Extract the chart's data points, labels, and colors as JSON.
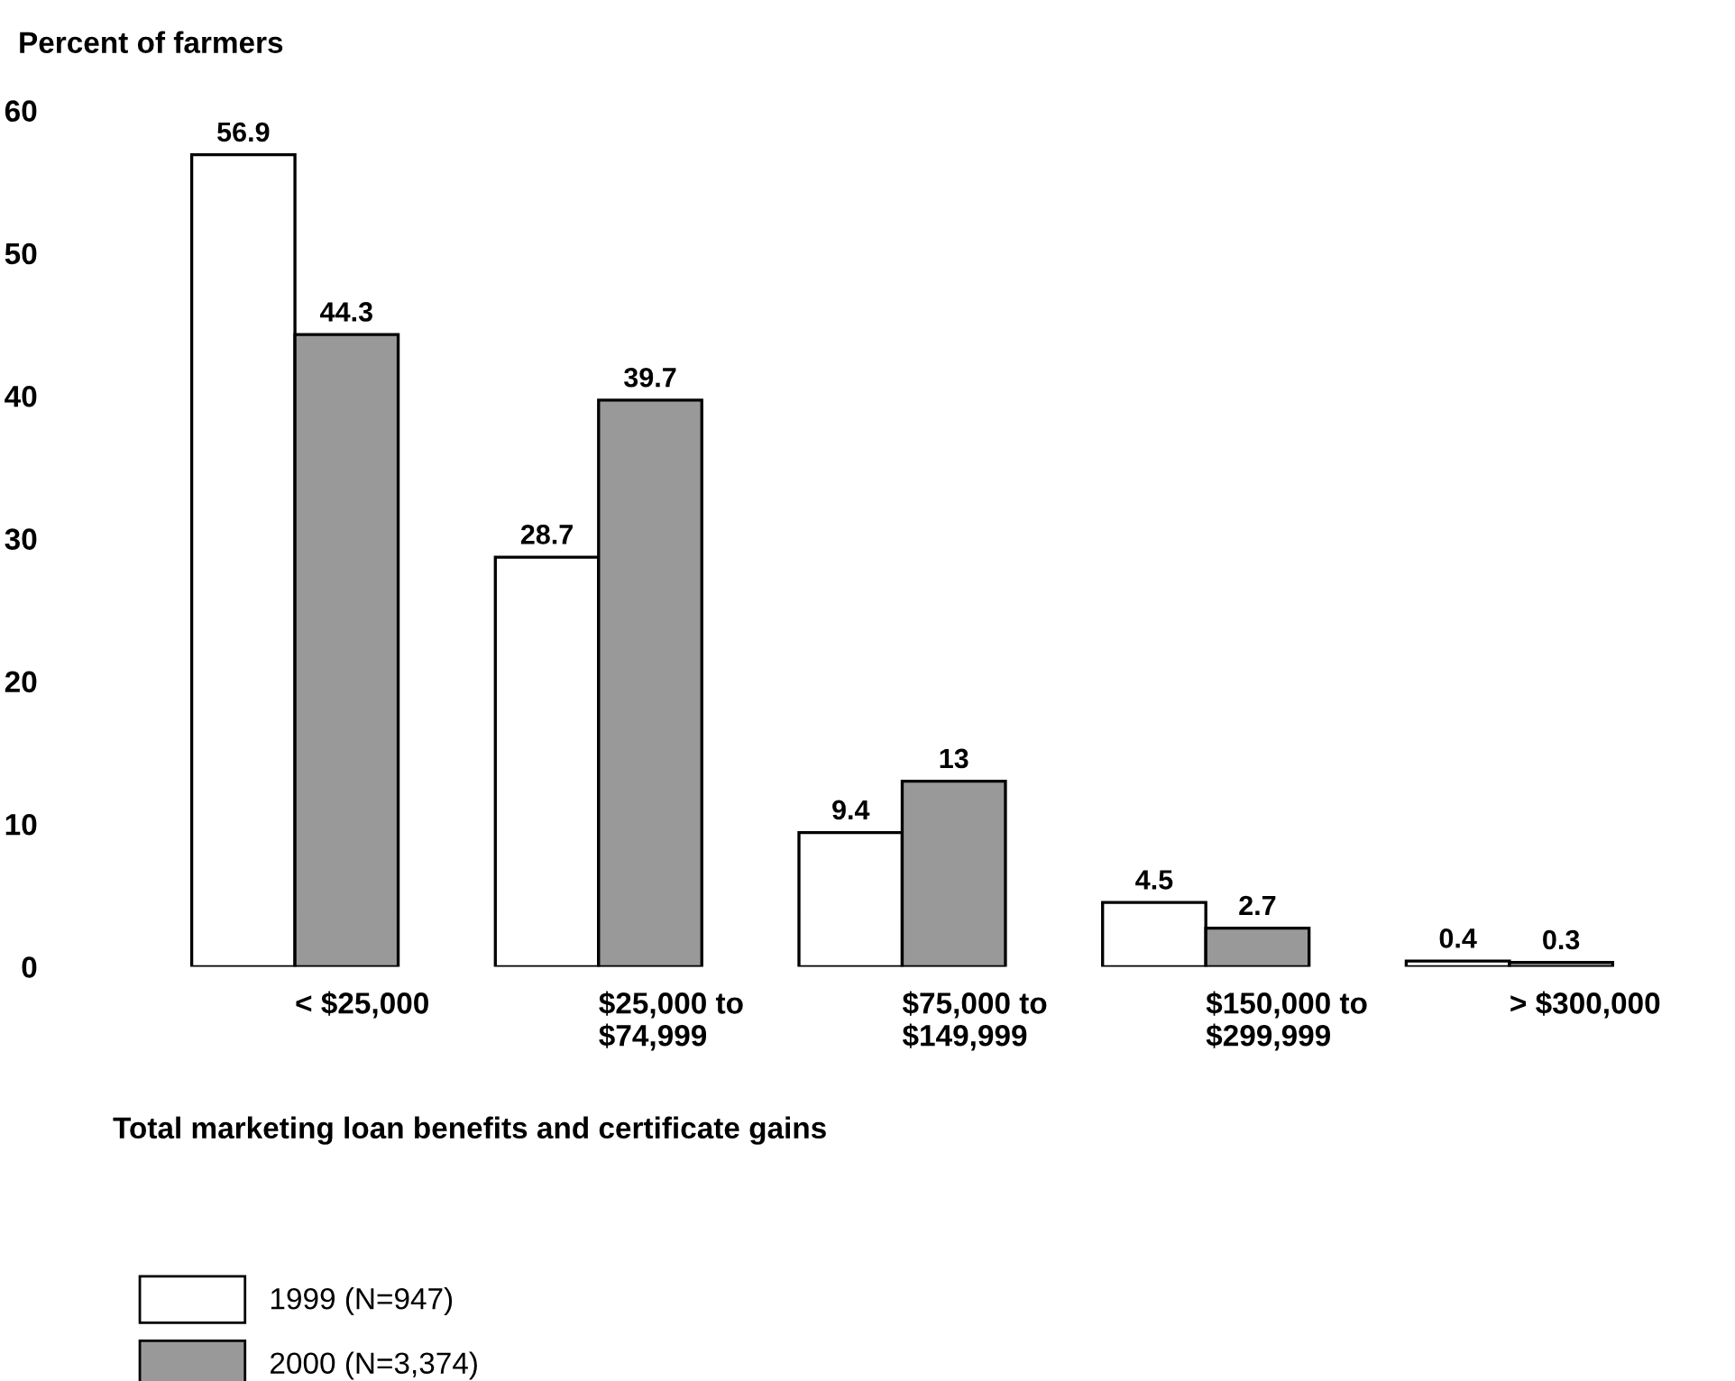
{
  "chart_data": {
    "type": "bar",
    "ylabel": "Percent of farmers",
    "xlabel": "Total marketing loan benefits and certificate gains",
    "categories": [
      "< $25,000",
      "$25,000 to\n$74,999",
      "$75,000 to\n$149,999",
      "$150,000 to\n$299,999",
      "> $300,000"
    ],
    "series": [
      {
        "name": "1999 (N=947)",
        "color": "#ffffff",
        "values": [
          56.9,
          28.7,
          9.4,
          4.5,
          0.4
        ]
      },
      {
        "name": "2000 (N=3,374)",
        "color": "#999999",
        "values": [
          44.3,
          39.7,
          13,
          2.7,
          0.3
        ]
      }
    ],
    "ylim": [
      0,
      60
    ],
    "yticks": [
      0,
      10,
      20,
      30,
      40,
      50,
      60
    ],
    "grid": false,
    "legend": "bottom left",
    "data_labels": true
  }
}
